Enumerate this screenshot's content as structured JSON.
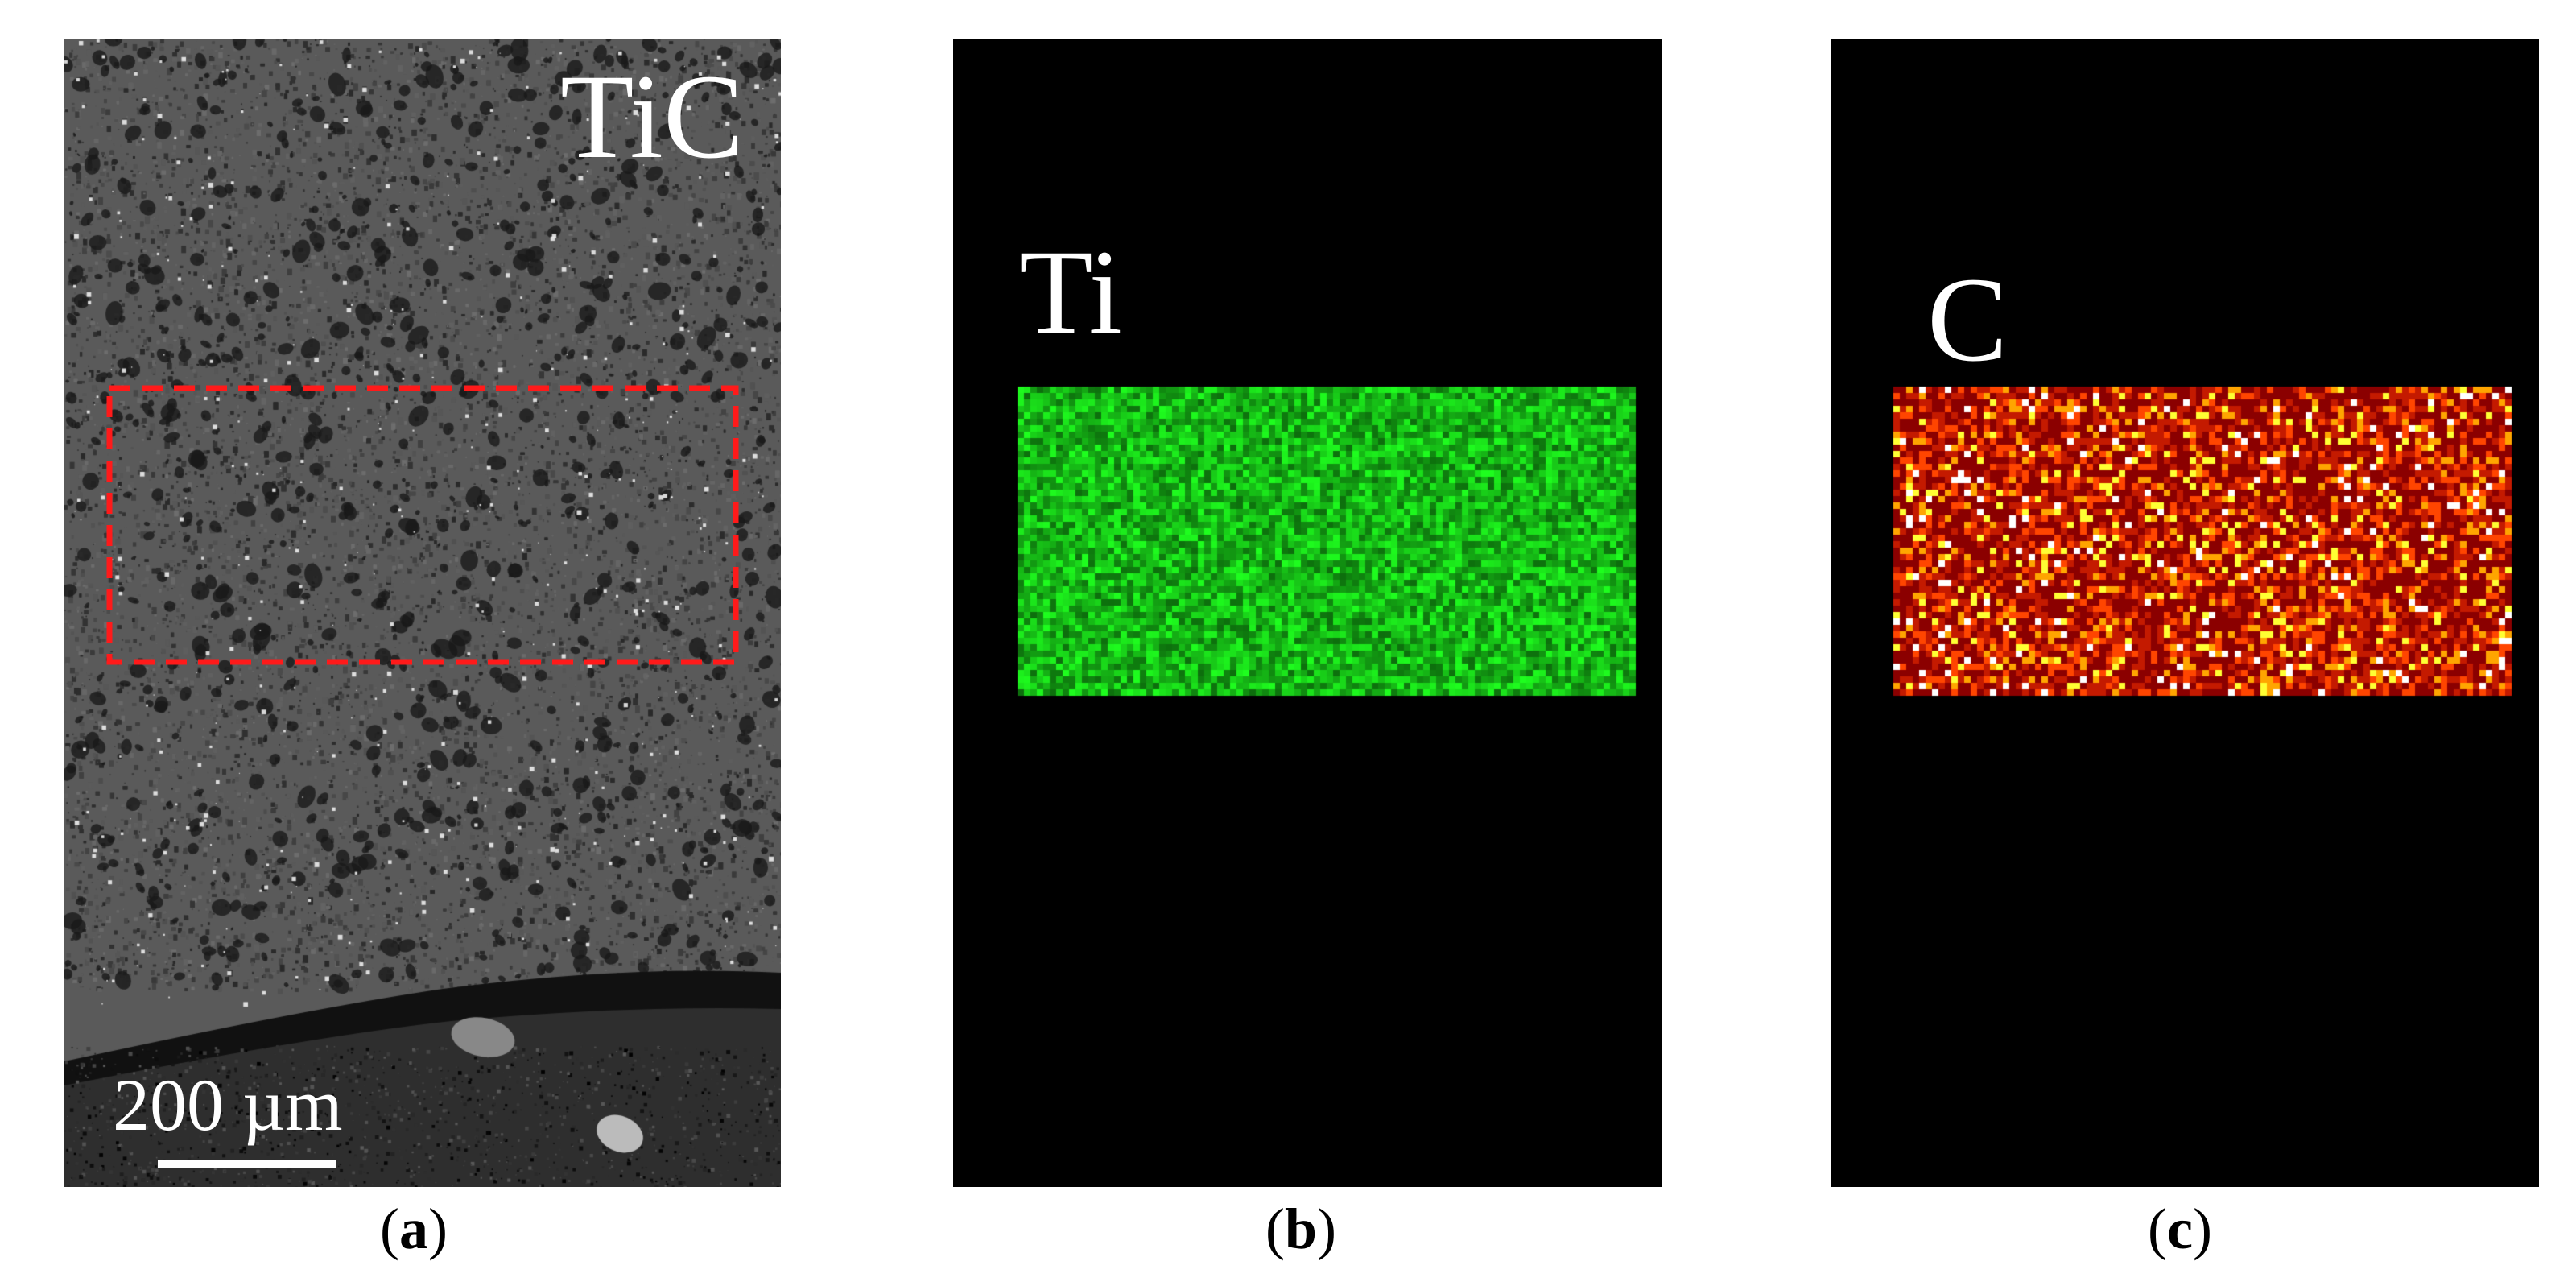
{
  "panels": {
    "a": {
      "label": "TiC",
      "scale_bar_label": "200 µm",
      "highlight_box_color": "#ff1a1a",
      "caption_letter": "a"
    },
    "b": {
      "label": "Ti",
      "map_color": "#1fe01f",
      "caption_letter": "b"
    },
    "c": {
      "label": "C",
      "map_colors": [
        "#8b0000",
        "#c41a00",
        "#ff4500",
        "#ffa500",
        "#ffff33",
        "#ffffff"
      ],
      "caption_letter": "c"
    }
  }
}
